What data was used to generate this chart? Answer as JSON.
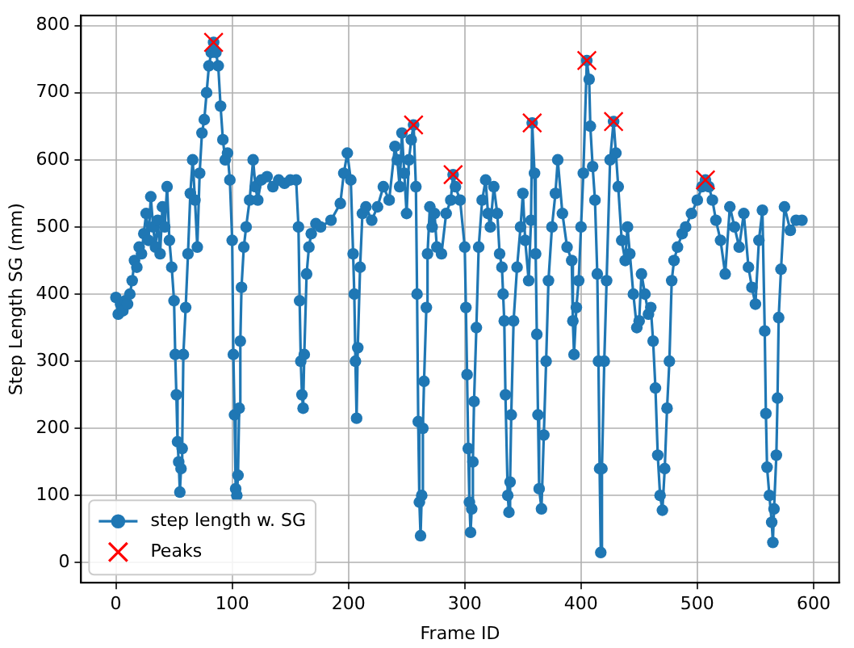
{
  "chart_data": {
    "type": "line",
    "xlabel": "Frame ID",
    "ylabel": "Step Length SG (mm)",
    "xlim": [
      -30,
      622
    ],
    "ylim": [
      -30,
      815
    ],
    "xticks": [
      0,
      100,
      200,
      300,
      400,
      500,
      600
    ],
    "yticks": [
      0,
      100,
      200,
      300,
      400,
      500,
      600,
      700,
      800
    ],
    "grid": true,
    "legend": "lower left",
    "series": [
      {
        "name": "step length w. SG",
        "marker": "circle",
        "color": "#1f77b4",
        "x": [
          0,
          2,
          4,
          6,
          8,
          10,
          12,
          14,
          16,
          18,
          20,
          22,
          24,
          26,
          28,
          30,
          32,
          34,
          36,
          38,
          40,
          42,
          44,
          46,
          48,
          50,
          51,
          52,
          53,
          54,
          55,
          56,
          57,
          58,
          60,
          62,
          64,
          66,
          68,
          70,
          72,
          74,
          76,
          78,
          80,
          82,
          84,
          86,
          88,
          90,
          92,
          94,
          96,
          98,
          100,
          101,
          102,
          103,
          104,
          105,
          106,
          107,
          108,
          110,
          112,
          115,
          118,
          120,
          122,
          125,
          130,
          135,
          140,
          145,
          150,
          155,
          157,
          158,
          159,
          160,
          161,
          162,
          164,
          166,
          168,
          172,
          176,
          185,
          193,
          196,
          199,
          202,
          204,
          205,
          206,
          207,
          208,
          210,
          212,
          215,
          220,
          225,
          230,
          235,
          240,
          242,
          244,
          246,
          248,
          250,
          252,
          254,
          256,
          258,
          259,
          260,
          261,
          262,
          263,
          264,
          265,
          267,
          268,
          270,
          272,
          274,
          276,
          280,
          284,
          288,
          290,
          292,
          296,
          300,
          301,
          302,
          303,
          304,
          305,
          306,
          307,
          308,
          310,
          312,
          315,
          318,
          320,
          322,
          325,
          328,
          330,
          332,
          333,
          334,
          335,
          337,
          338,
          339,
          340,
          342,
          345,
          348,
          350,
          352,
          355,
          357,
          358,
          360,
          361,
          362,
          363,
          364,
          366,
          368,
          370,
          372,
          375,
          378,
          380,
          384,
          388,
          392,
          393,
          394,
          396,
          398,
          400,
          402,
          405,
          407,
          408,
          410,
          412,
          414,
          415,
          416,
          417,
          418,
          420,
          422,
          425,
          428,
          430,
          432,
          435,
          438,
          440,
          442,
          445,
          448,
          450,
          452,
          455,
          458,
          460,
          462,
          464,
          466,
          468,
          470,
          472,
          474,
          476,
          478,
          480,
          483,
          487,
          490,
          495,
          500,
          504,
          507,
          510,
          513,
          516,
          520,
          524,
          528,
          532,
          536,
          540,
          544,
          547,
          550,
          553,
          556,
          558,
          559,
          560,
          562,
          564,
          565,
          566,
          568,
          569,
          570,
          572,
          575,
          580,
          585,
          590
        ],
        "values": [
          395,
          370,
          385,
          375,
          390,
          385,
          400,
          420,
          450,
          440,
          470,
          460,
          490,
          520,
          480,
          545,
          500,
          470,
          510,
          460,
          530,
          500,
          560,
          480,
          440,
          390,
          310,
          250,
          180,
          150,
          105,
          140,
          170,
          310,
          380,
          460,
          550,
          600,
          540,
          470,
          580,
          640,
          660,
          700,
          740,
          760,
          775,
          760,
          740,
          680,
          630,
          600,
          610,
          570,
          480,
          310,
          220,
          110,
          100,
          130,
          230,
          330,
          410,
          470,
          500,
          540,
          600,
          560,
          540,
          570,
          575,
          560,
          570,
          565,
          570,
          570,
          500,
          390,
          300,
          250,
          230,
          310,
          430,
          470,
          490,
          505,
          500,
          510,
          535,
          580,
          610,
          570,
          460,
          400,
          300,
          215,
          320,
          440,
          520,
          530,
          510,
          530,
          560,
          540,
          620,
          600,
          560,
          640,
          580,
          520,
          600,
          630,
          652,
          560,
          400,
          210,
          90,
          40,
          100,
          200,
          270,
          380,
          460,
          530,
          500,
          520,
          470,
          460,
          520,
          540,
          578,
          560,
          540,
          470,
          380,
          280,
          170,
          90,
          45,
          80,
          150,
          240,
          350,
          470,
          540,
          570,
          520,
          500,
          560,
          520,
          460,
          440,
          400,
          360,
          250,
          100,
          75,
          120,
          220,
          360,
          440,
          500,
          550,
          480,
          420,
          510,
          655,
          580,
          460,
          340,
          220,
          110,
          80,
          190,
          300,
          420,
          500,
          550,
          600,
          520,
          470,
          450,
          360,
          310,
          380,
          420,
          500,
          580,
          748,
          720,
          650,
          590,
          540,
          430,
          300,
          140,
          15,
          140,
          300,
          420,
          600,
          657,
          610,
          560,
          480,
          450,
          500,
          460,
          400,
          350,
          360,
          430,
          400,
          370,
          380,
          330,
          260,
          160,
          100,
          78,
          140,
          230,
          300,
          420,
          450,
          470,
          490,
          500,
          520,
          540,
          560,
          570,
          560,
          540,
          510,
          480,
          430,
          530,
          500,
          470,
          520,
          440,
          410,
          385,
          480,
          525,
          345,
          222,
          142,
          100,
          60,
          30,
          80,
          160,
          245,
          365,
          437,
          530,
          495,
          510,
          510
        ]
      },
      {
        "name": "Peaks",
        "type": "scatter",
        "marker": "cross",
        "color": "#ff0000",
        "x": [
          84,
          256,
          290,
          358,
          405,
          428,
          507
        ],
        "values": [
          775,
          652,
          578,
          655,
          748,
          657,
          570
        ]
      }
    ]
  }
}
